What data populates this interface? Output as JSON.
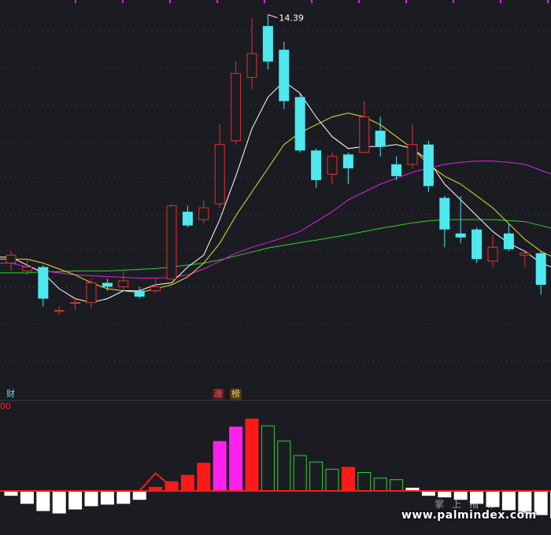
{
  "colors": {
    "up": "#e03030",
    "down": "#4de8f0",
    "ma5": "#ffffff",
    "ma10": "#e8e020",
    "ma20": "#e020e0",
    "ma60": "#30d030",
    "grid": "#2f3038",
    "top_ticks": "#e020e0",
    "hist_red": "#ff1a1a",
    "hist_magenta": "#ff20f0",
    "hist_white": "#ffffff",
    "hist_hollow_green": "#30d030",
    "zero_line": "#ff1a1a",
    "annotation": "#ffffff"
  },
  "annotations": {
    "high_price": "14.39"
  },
  "badges": {
    "cai": "财",
    "zhang": "涨",
    "bang": "榜"
  },
  "indicator_value": "00",
  "watermark": {
    "cn": "掌上指标",
    "url": "www.palmindex.com"
  },
  "chart_data": [
    {
      "type": "candlestick",
      "title": "",
      "price_range": [
        5.2,
        14.6
      ],
      "high_label": "14.39",
      "candles": [
        {
          "o": 8.1,
          "c": 8.3,
          "h": 8.4,
          "l": 7.9
        },
        {
          "o": 7.9,
          "c": 8.0,
          "h": 8.2,
          "l": 7.8
        },
        {
          "o": 8.0,
          "c": 7.2,
          "h": 8.05,
          "l": 7.0
        },
        {
          "o": 6.9,
          "c": 6.9,
          "h": 7.0,
          "l": 6.8
        },
        {
          "o": 7.1,
          "c": 7.1,
          "h": 7.2,
          "l": 6.9
        },
        {
          "o": 7.1,
          "c": 7.6,
          "h": 7.7,
          "l": 6.95
        },
        {
          "o": 7.6,
          "c": 7.5,
          "h": 7.7,
          "l": 7.4
        },
        {
          "o": 7.5,
          "c": 7.65,
          "h": 7.9,
          "l": 7.4
        },
        {
          "o": 7.4,
          "c": 7.25,
          "h": 7.5,
          "l": 7.2
        },
        {
          "o": 7.4,
          "c": 7.5,
          "h": 7.7,
          "l": 7.35
        },
        {
          "o": 7.7,
          "c": 9.55,
          "h": 9.6,
          "l": 7.7
        },
        {
          "o": 9.4,
          "c": 9.05,
          "h": 9.55,
          "l": 9.0
        },
        {
          "o": 9.2,
          "c": 9.5,
          "h": 9.7,
          "l": 9.1
        },
        {
          "o": 9.6,
          "c": 11.1,
          "h": 11.6,
          "l": 9.5
        },
        {
          "o": 11.2,
          "c": 12.9,
          "h": 13.2,
          "l": 11.1
        },
        {
          "o": 12.8,
          "c": 13.4,
          "h": 14.3,
          "l": 12.5
        },
        {
          "o": 14.1,
          "c": 13.2,
          "h": 14.39,
          "l": 13.0
        },
        {
          "o": 13.5,
          "c": 12.2,
          "h": 13.7,
          "l": 12.0
        },
        {
          "o": 12.3,
          "c": 10.95,
          "h": 12.4,
          "l": 10.9
        },
        {
          "o": 10.95,
          "c": 10.2,
          "h": 11.0,
          "l": 10.0
        },
        {
          "o": 10.35,
          "c": 10.8,
          "h": 10.9,
          "l": 10.1
        },
        {
          "o": 10.85,
          "c": 10.5,
          "h": 10.9,
          "l": 10.1
        },
        {
          "o": 10.9,
          "c": 11.8,
          "h": 12.2,
          "l": 10.9
        },
        {
          "o": 11.45,
          "c": 11.05,
          "h": 11.8,
          "l": 10.8
        },
        {
          "o": 10.6,
          "c": 10.3,
          "h": 10.8,
          "l": 10.2
        },
        {
          "o": 10.6,
          "c": 11.1,
          "h": 11.6,
          "l": 10.5
        },
        {
          "o": 11.1,
          "c": 10.05,
          "h": 11.2,
          "l": 9.9
        },
        {
          "o": 9.75,
          "c": 8.95,
          "h": 9.8,
          "l": 8.5
        },
        {
          "o": 8.85,
          "c": 8.75,
          "h": 9.8,
          "l": 8.6
        },
        {
          "o": 8.95,
          "c": 8.2,
          "h": 9.0,
          "l": 8.1
        },
        {
          "o": 8.15,
          "c": 8.5,
          "h": 8.8,
          "l": 8.0
        },
        {
          "o": 8.85,
          "c": 8.45,
          "h": 9.1,
          "l": 8.4
        },
        {
          "o": 8.3,
          "c": 8.35,
          "h": 8.4,
          "l": 8.0
        },
        {
          "o": 8.35,
          "c": 7.55,
          "h": 8.4,
          "l": 7.3
        },
        {
          "o": 7.55,
          "c": 7.35,
          "h": 7.6,
          "l": 7.2
        }
      ],
      "ma5": [
        8.25,
        8.05,
        7.85,
        7.45,
        7.2,
        7.1,
        7.2,
        7.4,
        7.4,
        7.55,
        7.6,
        8.0,
        8.3,
        9.2,
        10.3,
        11.5,
        12.3,
        12.7,
        12.4,
        11.8,
        11.3,
        11.0,
        11.05,
        11.05,
        11.1,
        11.0,
        10.7,
        10.1,
        9.7,
        9.3,
        8.9,
        8.6,
        8.4,
        8.1,
        7.95
      ],
      "ma10": [
        8.2,
        8.2,
        8.1,
        7.95,
        7.8,
        7.6,
        7.45,
        7.4,
        7.35,
        7.45,
        7.55,
        7.75,
        8.1,
        8.6,
        9.3,
        9.9,
        10.5,
        11.1,
        11.4,
        11.6,
        11.8,
        11.9,
        11.8,
        11.6,
        11.3,
        11.0,
        10.6,
        10.3,
        10.1,
        9.8,
        9.5,
        9.1,
        8.7,
        8.4,
        8.2
      ],
      "ma20": [
        8.1,
        8.0,
        7.9,
        7.85,
        7.8,
        7.78,
        7.76,
        7.74,
        7.72,
        7.72,
        7.74,
        7.8,
        7.95,
        8.15,
        8.35,
        8.5,
        8.62,
        8.75,
        8.9,
        9.15,
        9.4,
        9.7,
        9.9,
        10.1,
        10.25,
        10.4,
        10.5,
        10.6,
        10.65,
        10.68,
        10.68,
        10.65,
        10.6,
        10.45,
        10.3
      ],
      "ma60": [
        7.85,
        7.85,
        7.88,
        7.88,
        7.9,
        7.9,
        7.9,
        7.92,
        7.94,
        7.96,
        8.0,
        8.05,
        8.1,
        8.18,
        8.28,
        8.38,
        8.48,
        8.55,
        8.62,
        8.68,
        8.75,
        8.82,
        8.9,
        8.98,
        9.05,
        9.12,
        9.17,
        9.2,
        9.2,
        9.2,
        9.2,
        9.18,
        9.15,
        9.05,
        8.95
      ]
    },
    {
      "type": "bar",
      "title": "",
      "ylim": [
        -0.3,
        0.92
      ],
      "values": [
        -0.06,
        -0.16,
        -0.25,
        -0.28,
        -0.23,
        -0.19,
        -0.17,
        -0.16,
        -0.11,
        0.05,
        0.12,
        0.2,
        0.35,
        0.62,
        0.8,
        0.9,
        0.81,
        0.62,
        0.44,
        0.36,
        0.27,
        0.3,
        0.23,
        0.16,
        0.14,
        0.04,
        -0.06,
        -0.08,
        -0.11,
        -0.16,
        -0.2,
        -0.24,
        -0.28,
        -0.3,
        -0.34
      ],
      "bar_style": [
        "white",
        "white",
        "white",
        "white",
        "white",
        "white",
        "white",
        "white",
        "white",
        "red",
        "red",
        "red",
        "red",
        "magenta",
        "magenta",
        "red",
        "hollow",
        "hollow",
        "hollow",
        "hollow",
        "hollow",
        "red",
        "hollow",
        "hollow",
        "hollow",
        "white",
        "white",
        "white",
        "white",
        "white",
        "white",
        "white",
        "white",
        "white",
        "white"
      ],
      "signal_line": [
        null,
        null,
        null,
        null,
        null,
        null,
        null,
        null,
        0.0,
        0.22,
        0.05
      ]
    }
  ]
}
